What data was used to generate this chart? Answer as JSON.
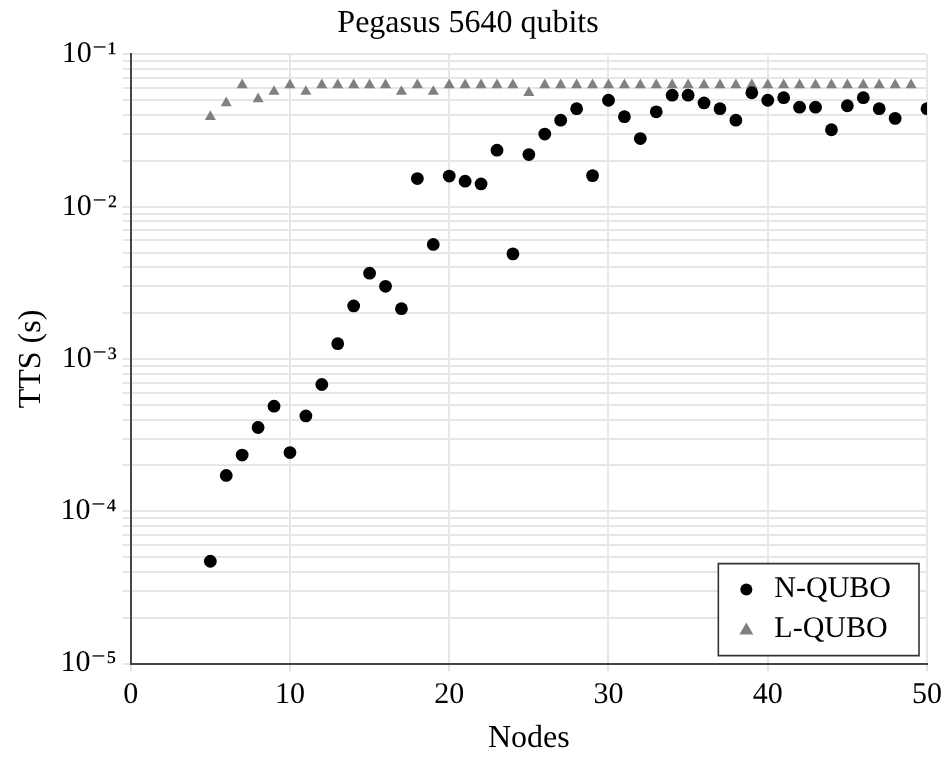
{
  "chart_data": {
    "type": "scatter",
    "title": "Pegasus 5640 qubits",
    "xlabel": "Nodes",
    "ylabel": "TTS (s)",
    "log": "y",
    "grid": true,
    "legend": "bottom right",
    "xlim": [
      0,
      50
    ],
    "xticks": [
      0,
      10,
      20,
      30,
      40,
      50
    ],
    "ylim": [
      1e-05,
      0.1
    ],
    "yticks": [
      {
        "value": 1e-05,
        "label": "10⁻⁵"
      },
      {
        "value": 2e-05,
        "label": null
      },
      {
        "value": 3e-05,
        "label": null
      },
      {
        "value": 4e-05,
        "label": null
      },
      {
        "value": 5e-05,
        "label": null
      },
      {
        "value": 6e-05,
        "label": null
      },
      {
        "value": 7e-05,
        "label": null
      },
      {
        "value": 8e-05,
        "label": null
      },
      {
        "value": 9e-05,
        "label": null
      },
      {
        "value": 0.0001,
        "label": "10⁻⁴"
      },
      {
        "value": 0.0002,
        "label": null
      },
      {
        "value": 0.0003,
        "label": null
      },
      {
        "value": 0.0004,
        "label": null
      },
      {
        "value": 0.0005,
        "label": null
      },
      {
        "value": 0.0006,
        "label": null
      },
      {
        "value": 0.0007,
        "label": null
      },
      {
        "value": 0.0008,
        "label": null
      },
      {
        "value": 0.0009,
        "label": null
      },
      {
        "value": 0.001,
        "label": "10⁻³"
      },
      {
        "value": 0.002,
        "label": null
      },
      {
        "value": 0.003,
        "label": null
      },
      {
        "value": 0.004,
        "label": null
      },
      {
        "value": 0.005,
        "label": null
      },
      {
        "value": 0.006,
        "label": null
      },
      {
        "value": 0.007,
        "label": null
      },
      {
        "value": 0.008,
        "label": null
      },
      {
        "value": 0.009,
        "label": null
      },
      {
        "value": 0.01,
        "label": "10⁻²"
      },
      {
        "value": 0.02,
        "label": null
      },
      {
        "value": 0.03,
        "label": null
      },
      {
        "value": 0.04,
        "label": null
      },
      {
        "value": 0.05,
        "label": null
      },
      {
        "value": 0.06,
        "label": null
      },
      {
        "value": 0.07,
        "label": null
      },
      {
        "value": 0.08,
        "label": null
      },
      {
        "value": 0.09,
        "label": null
      },
      {
        "value": 0.1,
        "label": "10⁻¹"
      }
    ],
    "series": [
      {
        "name": "N-QUBO",
        "color": "#000000",
        "marker": "circle",
        "x": [
          5,
          6,
          7,
          8,
          9,
          10,
          11,
          12,
          13,
          14,
          15,
          16,
          17,
          18,
          19,
          20,
          21,
          22,
          23,
          24,
          25,
          26,
          27,
          28,
          29,
          30,
          31,
          32,
          33,
          34,
          35,
          36,
          37,
          38,
          39,
          40,
          41,
          42,
          43,
          44,
          45,
          46,
          47,
          48,
          50
        ],
        "values": [
          4.7e-05,
          0.000172,
          0.000234,
          0.000355,
          0.00049,
          0.000243,
          0.000423,
          0.00068,
          0.00126,
          0.00223,
          0.00366,
          0.003,
          0.00214,
          0.0153,
          0.00565,
          0.0159,
          0.0147,
          0.0141,
          0.0235,
          0.0049,
          0.022,
          0.03,
          0.037,
          0.044,
          0.016,
          0.05,
          0.039,
          0.028,
          0.042,
          0.054,
          0.054,
          0.048,
          0.044,
          0.037,
          0.056,
          0.05,
          0.052,
          0.045,
          0.045,
          0.032,
          0.046,
          0.052,
          0.044,
          0.038,
          0.044
        ]
      },
      {
        "name": "L-QUBO",
        "color": "#808080",
        "marker": "triangle",
        "x": [
          5,
          6,
          7,
          8,
          9,
          10,
          11,
          12,
          13,
          14,
          15,
          16,
          17,
          18,
          19,
          20,
          21,
          22,
          23,
          24,
          25,
          26,
          27,
          28,
          29,
          30,
          31,
          32,
          33,
          34,
          35,
          36,
          37,
          38,
          39,
          40,
          41,
          42,
          43,
          44,
          45,
          46,
          47,
          48,
          49
        ],
        "values": [
          0.039,
          0.048,
          0.063,
          0.051,
          0.057,
          0.063,
          0.057,
          0.063,
          0.063,
          0.063,
          0.063,
          0.063,
          0.057,
          0.063,
          0.057,
          0.063,
          0.063,
          0.063,
          0.063,
          0.063,
          0.056,
          0.063,
          0.063,
          0.063,
          0.063,
          0.063,
          0.063,
          0.063,
          0.063,
          0.063,
          0.063,
          0.063,
          0.063,
          0.063,
          0.063,
          0.063,
          0.063,
          0.063,
          0.063,
          0.063,
          0.063,
          0.063,
          0.063,
          0.063,
          0.063
        ]
      }
    ]
  }
}
